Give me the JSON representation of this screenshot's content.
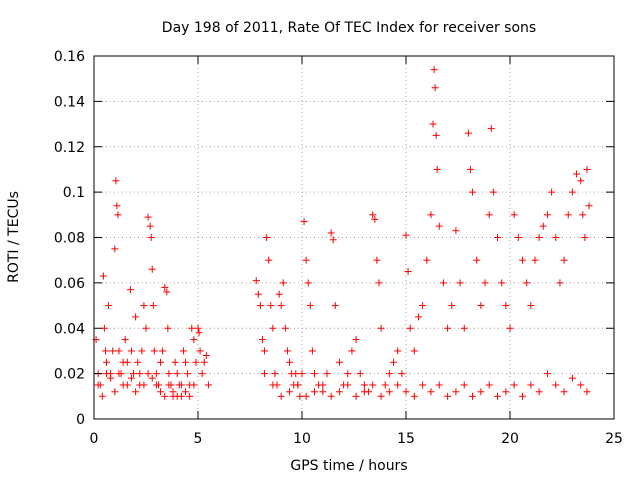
{
  "chart_data": {
    "type": "scatter",
    "title": "Day 198 of 2011, Rate Of TEC Index for receiver sons",
    "xlabel": "GPS time / hours",
    "ylabel": "ROTI / TECUs",
    "xlim": [
      0,
      25
    ],
    "ylim": [
      0,
      0.16
    ],
    "xticks": [
      0,
      5,
      10,
      15,
      20,
      25
    ],
    "yticks": [
      0,
      0.02,
      0.04,
      0.06,
      0.08,
      0.1,
      0.12,
      0.14,
      0.16
    ],
    "xtick_labels": [
      "0",
      "5",
      "10",
      "15",
      "20",
      "25"
    ],
    "ytick_labels": [
      "0",
      "0.02",
      "0.04",
      "0.06",
      "0.08",
      "0.1",
      "0.12",
      "0.14",
      "0.16"
    ],
    "grid": true,
    "marker": "plus",
    "color": "#ff0000",
    "series": [
      {
        "x": [
          0.1,
          0.2,
          0.3,
          0.45,
          0.5,
          0.55,
          0.6,
          0.7,
          0.8,
          0.9,
          1.0,
          1.05,
          1.1,
          1.15,
          1.2,
          1.3,
          1.4,
          1.5,
          1.6,
          1.75,
          1.8,
          1.9,
          2.0,
          2.1,
          2.2,
          2.3,
          2.4,
          2.5,
          2.6,
          2.7,
          2.75,
          2.8,
          2.85,
          2.9,
          3.0,
          3.1,
          3.2,
          3.3,
          3.4,
          3.5,
          3.55,
          3.6,
          3.7,
          3.8,
          3.9,
          4.0,
          4.1,
          4.2,
          4.3,
          4.4,
          4.5,
          4.6,
          4.7,
          4.8,
          4.9,
          5.0,
          5.05,
          5.1,
          5.2,
          5.3,
          5.4,
          5.5,
          7.8,
          7.9,
          8.0,
          8.1,
          8.2,
          8.3,
          8.4,
          8.5,
          8.6,
          8.7,
          8.8,
          8.9,
          9.0,
          9.1,
          9.2,
          9.3,
          9.4,
          9.5,
          9.6,
          9.7,
          9.8,
          9.9,
          10.0,
          10.1,
          10.2,
          10.3,
          10.4,
          10.5,
          10.6,
          10.8,
          11.0,
          11.2,
          11.4,
          11.5,
          11.6,
          11.8,
          12.0,
          12.2,
          12.4,
          12.6,
          12.8,
          13.0,
          13.2,
          13.4,
          13.5,
          13.6,
          13.7,
          13.8,
          14.0,
          14.2,
          14.4,
          14.6,
          14.8,
          15.0,
          15.1,
          15.2,
          15.4,
          15.6,
          15.8,
          16.0,
          16.2,
          16.3,
          16.35,
          16.4,
          16.45,
          16.5,
          16.6,
          16.8,
          17.0,
          17.2,
          17.4,
          17.6,
          17.8,
          18.0,
          18.1,
          18.2,
          18.4,
          18.6,
          18.8,
          19.0,
          19.1,
          19.2,
          19.4,
          19.6,
          19.8,
          20.0,
          20.2,
          20.4,
          20.6,
          20.8,
          21.0,
          21.2,
          21.4,
          21.6,
          21.8,
          22.0,
          22.2,
          22.4,
          22.6,
          22.8,
          23.0,
          23.2,
          23.4,
          23.5,
          23.6,
          23.7,
          23.8,
          0.2,
          0.4,
          0.6,
          0.8,
          1.0,
          1.2,
          1.4,
          1.6,
          1.8,
          2.0,
          2.2,
          2.4,
          2.6,
          2.8,
          3.0,
          3.2,
          3.4,
          3.6,
          3.8,
          4.0,
          4.2,
          4.4,
          4.6,
          4.8,
          8.2,
          8.6,
          9.0,
          9.4,
          9.8,
          10.2,
          10.6,
          11.0,
          11.4,
          11.8,
          12.2,
          12.6,
          13.0,
          13.4,
          13.8,
          14.2,
          14.6,
          15.0,
          15.4,
          15.8,
          16.2,
          16.6,
          17.0,
          17.4,
          17.8,
          18.2,
          18.6,
          19.0,
          19.4,
          19.8,
          20.2,
          20.6,
          21.0,
          21.4,
          21.8,
          22.2,
          22.6,
          23.0,
          23.4,
          23.7
        ],
        "y": [
          0.035,
          0.02,
          0.015,
          0.063,
          0.04,
          0.03,
          0.025,
          0.05,
          0.02,
          0.03,
          0.075,
          0.105,
          0.094,
          0.09,
          0.03,
          0.02,
          0.025,
          0.035,
          0.015,
          0.057,
          0.03,
          0.02,
          0.045,
          0.025,
          0.015,
          0.03,
          0.05,
          0.04,
          0.089,
          0.085,
          0.08,
          0.066,
          0.05,
          0.03,
          0.02,
          0.015,
          0.025,
          0.03,
          0.058,
          0.056,
          0.04,
          0.02,
          0.015,
          0.01,
          0.025,
          0.02,
          0.015,
          0.01,
          0.03,
          0.025,
          0.02,
          0.015,
          0.04,
          0.035,
          0.025,
          0.04,
          0.038,
          0.03,
          0.02,
          0.025,
          0.028,
          0.015,
          0.061,
          0.055,
          0.05,
          0.035,
          0.03,
          0.08,
          0.07,
          0.05,
          0.04,
          0.02,
          0.015,
          0.055,
          0.05,
          0.06,
          0.04,
          0.03,
          0.025,
          0.02,
          0.015,
          0.02,
          0.015,
          0.01,
          0.02,
          0.087,
          0.07,
          0.06,
          0.05,
          0.03,
          0.02,
          0.015,
          0.012,
          0.02,
          0.082,
          0.079,
          0.05,
          0.025,
          0.015,
          0.02,
          0.03,
          0.035,
          0.02,
          0.015,
          0.012,
          0.09,
          0.088,
          0.07,
          0.06,
          0.04,
          0.015,
          0.02,
          0.025,
          0.03,
          0.02,
          0.081,
          0.065,
          0.04,
          0.03,
          0.045,
          0.05,
          0.07,
          0.09,
          0.13,
          0.154,
          0.146,
          0.125,
          0.11,
          0.085,
          0.06,
          0.04,
          0.05,
          0.083,
          0.06,
          0.04,
          0.126,
          0.11,
          0.1,
          0.07,
          0.05,
          0.06,
          0.09,
          0.128,
          0.1,
          0.08,
          0.06,
          0.05,
          0.04,
          0.09,
          0.08,
          0.07,
          0.06,
          0.05,
          0.07,
          0.08,
          0.085,
          0.09,
          0.1,
          0.08,
          0.06,
          0.07,
          0.09,
          0.1,
          0.108,
          0.105,
          0.09,
          0.08,
          0.11,
          0.094,
          0.015,
          0.01,
          0.02,
          0.018,
          0.012,
          0.02,
          0.015,
          0.025,
          0.018,
          0.012,
          0.02,
          0.015,
          0.02,
          0.018,
          0.015,
          0.012,
          0.01,
          0.015,
          0.012,
          0.01,
          0.015,
          0.012,
          0.01,
          0.015,
          0.02,
          0.015,
          0.01,
          0.012,
          0.015,
          0.01,
          0.012,
          0.015,
          0.01,
          0.012,
          0.015,
          0.01,
          0.012,
          0.015,
          0.01,
          0.012,
          0.015,
          0.012,
          0.01,
          0.015,
          0.012,
          0.015,
          0.01,
          0.012,
          0.015,
          0.01,
          0.012,
          0.015,
          0.01,
          0.012,
          0.015,
          0.01,
          0.015,
          0.012,
          0.02,
          0.015,
          0.012,
          0.018,
          0.015,
          0.012
        ]
      }
    ]
  }
}
